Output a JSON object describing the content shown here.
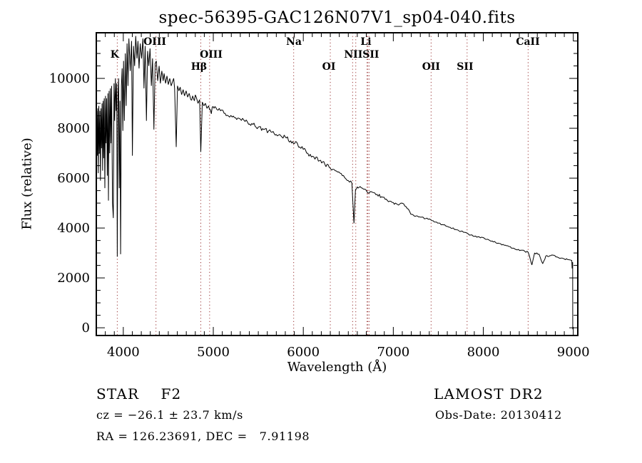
{
  "chart_data": {
    "type": "line",
    "title": "spec-56395-GAC126N07V1_sp04-040.fits",
    "xlabel": "Wavelength (Å)",
    "ylabel": "Flux (relative)",
    "xlim": [
      3700,
      9050
    ],
    "ylim": [
      -310,
      11830
    ],
    "x_ticks": [
      4000,
      5000,
      6000,
      7000,
      8000,
      9000
    ],
    "y_ticks": [
      0,
      2000,
      4000,
      6000,
      8000,
      10000
    ],
    "x_minor_step": 100,
    "y_minor_step": 500,
    "grid": false,
    "line_color": "#000000",
    "marker_line_color": "#993333",
    "marker_lines": [
      3933,
      4363,
      4861,
      4959,
      5893,
      6300,
      6548,
      6583,
      6708,
      6717,
      6731,
      7420,
      7820,
      8498
    ],
    "line_labels": [
      {
        "text": "K",
        "wavelength": 3905,
        "row": 2
      },
      {
        "text": "OIII",
        "wavelength": 4350,
        "row": 1
      },
      {
        "text": "Hβ",
        "wavelength": 4841,
        "row": 3
      },
      {
        "text": "OIII",
        "wavelength": 4976,
        "row": 2
      },
      {
        "text": "Na",
        "wavelength": 5896,
        "row": 1
      },
      {
        "text": "OI",
        "wavelength": 6284,
        "row": 3
      },
      {
        "text": "Li",
        "wavelength": 6696,
        "row": 1
      },
      {
        "text": "NIISII",
        "wavelength": 6648,
        "row": 2
      },
      {
        "text": "OII",
        "wavelength": 7420,
        "row": 3
      },
      {
        "text": "SII",
        "wavelength": 7797,
        "row": 3
      },
      {
        "text": "CaII",
        "wavelength": 8495,
        "row": 1
      }
    ],
    "noise_regions": [
      [
        3700,
        4980,
        260
      ],
      [
        4980,
        6280,
        90
      ],
      [
        6280,
        7200,
        55
      ],
      [
        7200,
        8995,
        32
      ]
    ],
    "series": [
      {
        "name": "spectrum",
        "points": [
          [
            3700,
            7600
          ],
          [
            3706,
            8700
          ],
          [
            3711,
            6900
          ],
          [
            3716,
            8800
          ],
          [
            3722,
            6200
          ],
          [
            3728,
            8900
          ],
          [
            3734,
            7000
          ],
          [
            3740,
            8700
          ],
          [
            3746,
            5900
          ],
          [
            3752,
            8800
          ],
          [
            3758,
            7200
          ],
          [
            3764,
            9000
          ],
          [
            3770,
            6300
          ],
          [
            3776,
            9100
          ],
          [
            3782,
            6800
          ],
          [
            3788,
            9200
          ],
          [
            3795,
            5600
          ],
          [
            3802,
            9300
          ],
          [
            3808,
            7400
          ],
          [
            3815,
            9200
          ],
          [
            3822,
            6100
          ],
          [
            3829,
            9400
          ],
          [
            3835,
            5100
          ],
          [
            3842,
            9500
          ],
          [
            3849,
            7000
          ],
          [
            3856,
            9600
          ],
          [
            3863,
            7400
          ],
          [
            3870,
            9700
          ],
          [
            3880,
            5000
          ],
          [
            3889,
            4400
          ],
          [
            3897,
            9800
          ],
          [
            3904,
            8300
          ],
          [
            3912,
            10000
          ],
          [
            3920,
            8700
          ],
          [
            3927,
            9800
          ],
          [
            3933,
            2850
          ],
          [
            3941,
            9300
          ],
          [
            3948,
            10000
          ],
          [
            3955,
            5600
          ],
          [
            3963,
            9100
          ],
          [
            3970,
            2950
          ],
          [
            3979,
            9700
          ],
          [
            3987,
            10400
          ],
          [
            3995,
            7900
          ],
          [
            4003,
            10700
          ],
          [
            4012,
            8300
          ],
          [
            4022,
            11000
          ],
          [
            4032,
            8900
          ],
          [
            4042,
            11400
          ],
          [
            4052,
            9700
          ],
          [
            4062,
            11600
          ],
          [
            4077,
            10300
          ],
          [
            4092,
            11500
          ],
          [
            4101,
            6900
          ],
          [
            4113,
            11300
          ],
          [
            4126,
            10500
          ],
          [
            4138,
            11700
          ],
          [
            4152,
            10800
          ],
          [
            4163,
            11500
          ],
          [
            4175,
            10400
          ],
          [
            4188,
            11400
          ],
          [
            4203,
            10800
          ],
          [
            4218,
            11600
          ],
          [
            4230,
            9600
          ],
          [
            4243,
            11300
          ],
          [
            4257,
            8300
          ],
          [
            4270,
            11100
          ],
          [
            4283,
            10500
          ],
          [
            4297,
            11200
          ],
          [
            4312,
            9700
          ],
          [
            4325,
            10800
          ],
          [
            4340,
            7950
          ],
          [
            4354,
            10600
          ],
          [
            4367,
            10700
          ],
          [
            4382,
            9900
          ],
          [
            4398,
            10500
          ],
          [
            4412,
            9800
          ],
          [
            4428,
            10300
          ],
          [
            4443,
            9900
          ],
          [
            4453,
            10200
          ],
          [
            4470,
            9800
          ],
          [
            4485,
            10100
          ],
          [
            4500,
            9750
          ],
          [
            4516,
            10000
          ],
          [
            4532,
            9700
          ],
          [
            4550,
            9900
          ],
          [
            4570,
            9600
          ],
          [
            4588,
            7250
          ],
          [
            4602,
            9700
          ],
          [
            4618,
            9500
          ],
          [
            4632,
            9650
          ],
          [
            4648,
            9350
          ],
          [
            4665,
            9550
          ],
          [
            4680,
            9300
          ],
          [
            4698,
            9500
          ],
          [
            4715,
            9250
          ],
          [
            4732,
            9400
          ],
          [
            4750,
            9150
          ],
          [
            4770,
            9300
          ],
          [
            4790,
            9100
          ],
          [
            4810,
            9250
          ],
          [
            4830,
            9000
          ],
          [
            4848,
            9150
          ],
          [
            4861,
            7050
          ],
          [
            4878,
            9050
          ],
          [
            4895,
            8900
          ],
          [
            4912,
            9000
          ],
          [
            4930,
            8800
          ],
          [
            4948,
            8900
          ],
          [
            4968,
            8750
          ],
          [
            4988,
            8850
          ],
          [
            5008,
            8800
          ],
          [
            5040,
            8750
          ],
          [
            5080,
            8700
          ],
          [
            5120,
            8600
          ],
          [
            5166,
            8500
          ],
          [
            5210,
            8450
          ],
          [
            5260,
            8350
          ],
          [
            5325,
            8400
          ],
          [
            5380,
            8250
          ],
          [
            5440,
            8150
          ],
          [
            5500,
            8050
          ],
          [
            5560,
            7950
          ],
          [
            5642,
            7850
          ],
          [
            5700,
            7750
          ],
          [
            5750,
            7700
          ],
          [
            5800,
            7650
          ],
          [
            5860,
            7500
          ],
          [
            5893,
            7380
          ],
          [
            5925,
            7450
          ],
          [
            5959,
            7250
          ],
          [
            6000,
            7150
          ],
          [
            6050,
            7000
          ],
          [
            6117,
            6850
          ],
          [
            6180,
            6700
          ],
          [
            6240,
            6550
          ],
          [
            6300,
            6400
          ],
          [
            6355,
            6300
          ],
          [
            6434,
            6100
          ],
          [
            6500,
            5900
          ],
          [
            6540,
            5800
          ],
          [
            6563,
            4190
          ],
          [
            6580,
            5550
          ],
          [
            6600,
            5650
          ],
          [
            6633,
            5660
          ],
          [
            6680,
            5560
          ],
          [
            6708,
            5450
          ],
          [
            6731,
            5400
          ],
          [
            6770,
            5430
          ],
          [
            6820,
            5350
          ],
          [
            6870,
            5250
          ],
          [
            6910,
            5150
          ],
          [
            6960,
            5080
          ],
          [
            7000,
            5020
          ],
          [
            7045,
            4950
          ],
          [
            7085,
            5000
          ],
          [
            7115,
            4970
          ],
          [
            7155,
            4780
          ],
          [
            7195,
            4550
          ],
          [
            7245,
            4470
          ],
          [
            7306,
            4430
          ],
          [
            7360,
            4380
          ],
          [
            7417,
            4330
          ],
          [
            7480,
            4240
          ],
          [
            7544,
            4140
          ],
          [
            7620,
            4030
          ],
          [
            7703,
            3930
          ],
          [
            7780,
            3830
          ],
          [
            7860,
            3720
          ],
          [
            7941,
            3650
          ],
          [
            8020,
            3560
          ],
          [
            8099,
            3480
          ],
          [
            8180,
            3380
          ],
          [
            8258,
            3290
          ],
          [
            8340,
            3190
          ],
          [
            8416,
            3110
          ],
          [
            8460,
            3070
          ],
          [
            8498,
            3030
          ],
          [
            8540,
            2520
          ],
          [
            8570,
            3000
          ],
          [
            8620,
            2950
          ],
          [
            8660,
            2570
          ],
          [
            8695,
            2880
          ],
          [
            8740,
            2890
          ],
          [
            8773,
            2910
          ],
          [
            8820,
            2840
          ],
          [
            8860,
            2790
          ],
          [
            8900,
            2760
          ],
          [
            8935,
            2740
          ],
          [
            8965,
            2720
          ],
          [
            8983,
            2700
          ],
          [
            8987,
            2380
          ],
          [
            8991,
            2620
          ],
          [
            8993,
            2620
          ],
          [
            8994,
            -60
          ]
        ]
      }
    ]
  },
  "annotations": {
    "star_class": "STAR    F2",
    "survey": "LAMOST DR2",
    "cz": "cz = −26.1 ± 23.7 km/s",
    "obs_date": "Obs-Date: 20130412",
    "ra_dec": "RA = 126.23691, DEC =   7.91198"
  }
}
